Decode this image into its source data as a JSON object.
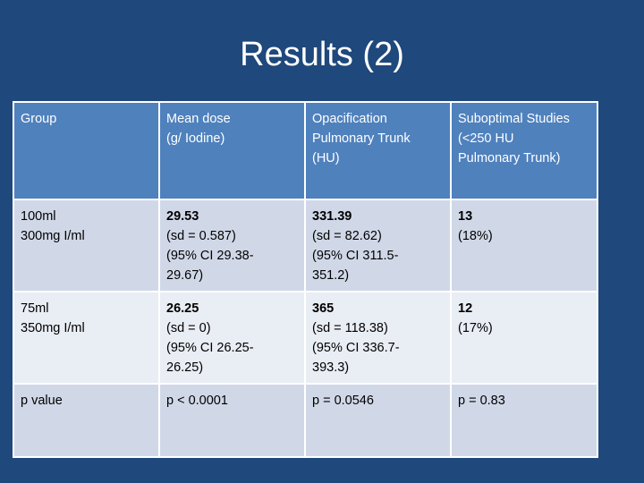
{
  "title": "Results (2)",
  "table": {
    "header": [
      [
        "Group"
      ],
      [
        "Mean dose",
        "(g/ Iodine)"
      ],
      [
        "Opacification",
        "Pulmonary Trunk",
        "(HU)"
      ],
      [
        "Suboptimal Studies",
        "(<250 HU",
        "Pulmonary Trunk)"
      ]
    ],
    "rows": [
      [
        [
          "100ml",
          "300mg I/ml"
        ],
        [
          "29.53",
          "(sd = 0.587)",
          "(95% CI 29.38-",
          "29.67)"
        ],
        [
          "331.39",
          "(sd = 82.62)",
          "(95% CI 311.5-",
          "351.2)"
        ],
        [
          "13",
          "(18%)"
        ]
      ],
      [
        [
          "75ml",
          "350mg I/ml"
        ],
        [
          "26.25",
          "(sd = 0)",
          "(95% CI 26.25-",
          "26.25)"
        ],
        [
          "365",
          "(sd = 118.38)",
          "(95% CI 336.7-",
          "393.3)"
        ],
        [
          "12",
          "(17%)"
        ]
      ],
      [
        [
          "p value"
        ],
        [
          "p < 0.0001"
        ],
        [
          "p = 0.0546"
        ],
        [
          "p = 0.83"
        ]
      ]
    ]
  }
}
